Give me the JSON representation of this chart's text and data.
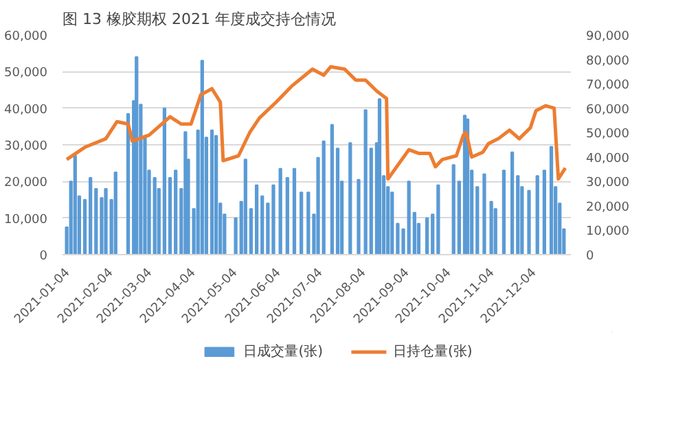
{
  "chart_data": {
    "type": "bar",
    "title": "图 13   橡胶期权 2021 年度成交持仓情况",
    "xlim": [
      "2021-01-01",
      "2021-12-31"
    ],
    "xticks": [
      "2021-01-04",
      "2021-02-04",
      "2021-03-04",
      "2021-04-04",
      "2021-05-04",
      "2021-06-04",
      "2021-07-04",
      "2021-08-04",
      "2021-09-04",
      "2021-10-04",
      "2021-11-04",
      "2021-12-04"
    ],
    "ylim": [
      0,
      60000
    ],
    "yticks": [
      {
        "value": 0,
        "label": "0"
      },
      {
        "value": 10000,
        "label": "10,000"
      },
      {
        "value": 20000,
        "label": "20,000"
      },
      {
        "value": 30000,
        "label": "30,000"
      },
      {
        "value": 40000,
        "label": "40,000"
      },
      {
        "value": 50000,
        "label": "50,000"
      },
      {
        "value": 60000,
        "label": "60,000"
      }
    ],
    "y2lim": [
      0,
      90000
    ],
    "y2ticks": [
      {
        "value": 0,
        "label": "0"
      },
      {
        "value": 10000,
        "label": "10,000"
      },
      {
        "value": 20000,
        "label": "20,000"
      },
      {
        "value": 30000,
        "label": "30,000"
      },
      {
        "value": 40000,
        "label": "40,000"
      },
      {
        "value": 50000,
        "label": "50,000"
      },
      {
        "value": 60000,
        "label": "60,000"
      },
      {
        "value": 70000,
        "label": "70,000"
      },
      {
        "value": 80000,
        "label": "80,000"
      },
      {
        "value": 90000,
        "label": "90,000"
      }
    ],
    "grid": "y",
    "legend": "bottom",
    "series": [
      {
        "name": "日成交量(张)",
        "color": "#5b9bd5",
        "x": [
          "2021-01-04",
          "2021-01-07",
          "2021-01-10",
          "2021-01-13",
          "2021-01-17",
          "2021-01-21",
          "2021-01-25",
          "2021-01-29",
          "2021-02-01",
          "2021-02-05",
          "2021-02-08",
          "2021-02-17",
          "2021-02-21",
          "2021-02-23",
          "2021-02-26",
          "2021-03-01",
          "2021-03-04",
          "2021-03-08",
          "2021-03-11",
          "2021-03-15",
          "2021-03-19",
          "2021-03-23",
          "2021-03-27",
          "2021-03-30",
          "2021-04-01",
          "2021-04-05",
          "2021-04-08",
          "2021-04-11",
          "2021-04-14",
          "2021-04-18",
          "2021-04-21",
          "2021-04-24",
          "2021-04-27",
          "2021-05-05",
          "2021-05-09",
          "2021-05-12",
          "2021-05-16",
          "2021-05-20",
          "2021-05-24",
          "2021-05-28",
          "2021-06-01",
          "2021-06-06",
          "2021-06-11",
          "2021-06-16",
          "2021-06-21",
          "2021-06-26",
          "2021-06-30",
          "2021-07-03",
          "2021-07-07",
          "2021-07-13",
          "2021-07-17",
          "2021-07-20",
          "2021-07-26",
          "2021-08-01",
          "2021-08-06",
          "2021-08-10",
          "2021-08-14",
          "2021-08-16",
          "2021-08-19",
          "2021-08-22",
          "2021-08-25",
          "2021-08-29",
          "2021-09-02",
          "2021-09-06",
          "2021-09-10",
          "2021-09-13",
          "2021-09-19",
          "2021-09-23",
          "2021-09-27",
          "2021-10-08",
          "2021-10-12",
          "2021-10-16",
          "2021-10-18",
          "2021-10-21",
          "2021-10-25",
          "2021-10-30",
          "2021-11-04",
          "2021-11-07",
          "2021-11-13",
          "2021-11-19",
          "2021-11-23",
          "2021-11-26",
          "2021-12-01",
          "2021-12-07",
          "2021-12-12",
          "2021-12-17",
          "2021-12-20",
          "2021-12-23",
          "2021-12-26"
        ],
        "values": [
          7500,
          20000,
          27000,
          16000,
          15000,
          21000,
          18000,
          15500,
          18000,
          15000,
          22500,
          38500,
          42000,
          54000,
          41000,
          32500,
          23000,
          21000,
          18000,
          40000,
          21000,
          23000,
          18000,
          33500,
          26000,
          12500,
          34000,
          53000,
          32000,
          34000,
          32500,
          14000,
          11000,
          10000,
          14500,
          26000,
          12500,
          19000,
          16000,
          14000,
          19000,
          23500,
          21000,
          23500,
          17000,
          17000,
          11000,
          26500,
          31000,
          35500,
          29000,
          20000,
          30500,
          20500,
          39500,
          29000,
          30500,
          42500,
          21500,
          18500,
          17000,
          8500,
          7000,
          20000,
          11500,
          8500,
          10000,
          11000,
          19000,
          24500,
          20000,
          38000,
          37000,
          23000,
          18500,
          22000,
          14500,
          12500,
          23000,
          28000,
          21500,
          18500,
          17500,
          21500,
          23000,
          29500,
          18500,
          14000,
          7000
        ]
      },
      {
        "name": "日持仓量(张)",
        "type": "line",
        "axis": "y2",
        "color": "#ed7d31",
        "x": [
          "2021-01-04",
          "2021-01-17",
          "2021-02-01",
          "2021-02-09",
          "2021-02-17",
          "2021-02-20",
          "2021-03-04",
          "2021-03-19",
          "2021-03-27",
          "2021-04-03",
          "2021-04-10",
          "2021-04-18",
          "2021-04-24",
          "2021-04-26",
          "2021-05-07",
          "2021-05-15",
          "2021-05-22",
          "2021-06-03",
          "2021-06-14",
          "2021-06-29",
          "2021-07-07",
          "2021-07-12",
          "2021-07-22",
          "2021-07-30",
          "2021-08-06",
          "2021-08-14",
          "2021-08-21",
          "2021-08-22",
          "2021-09-06",
          "2021-09-13",
          "2021-09-21",
          "2021-09-25",
          "2021-09-30",
          "2021-10-10",
          "2021-10-15",
          "2021-10-17",
          "2021-10-21",
          "2021-10-29",
          "2021-11-02",
          "2021-11-09",
          "2021-11-17",
          "2021-11-24",
          "2021-12-02",
          "2021-12-06",
          "2021-12-13",
          "2021-12-19",
          "2021-12-22",
          "2021-12-27"
        ],
        "values": [
          39000,
          44000,
          47500,
          54500,
          53500,
          46500,
          49000,
          56500,
          53500,
          53500,
          65500,
          68000,
          62500,
          38500,
          40500,
          50000,
          56000,
          62500,
          69000,
          76000,
          73500,
          77000,
          76000,
          71500,
          71500,
          67000,
          64000,
          31000,
          43000,
          41500,
          41500,
          36000,
          39000,
          40500,
          49000,
          50000,
          40000,
          42000,
          45500,
          47500,
          51000,
          47500,
          52000,
          59000,
          61000,
          60000,
          31000,
          35500
        ]
      }
    ]
  }
}
